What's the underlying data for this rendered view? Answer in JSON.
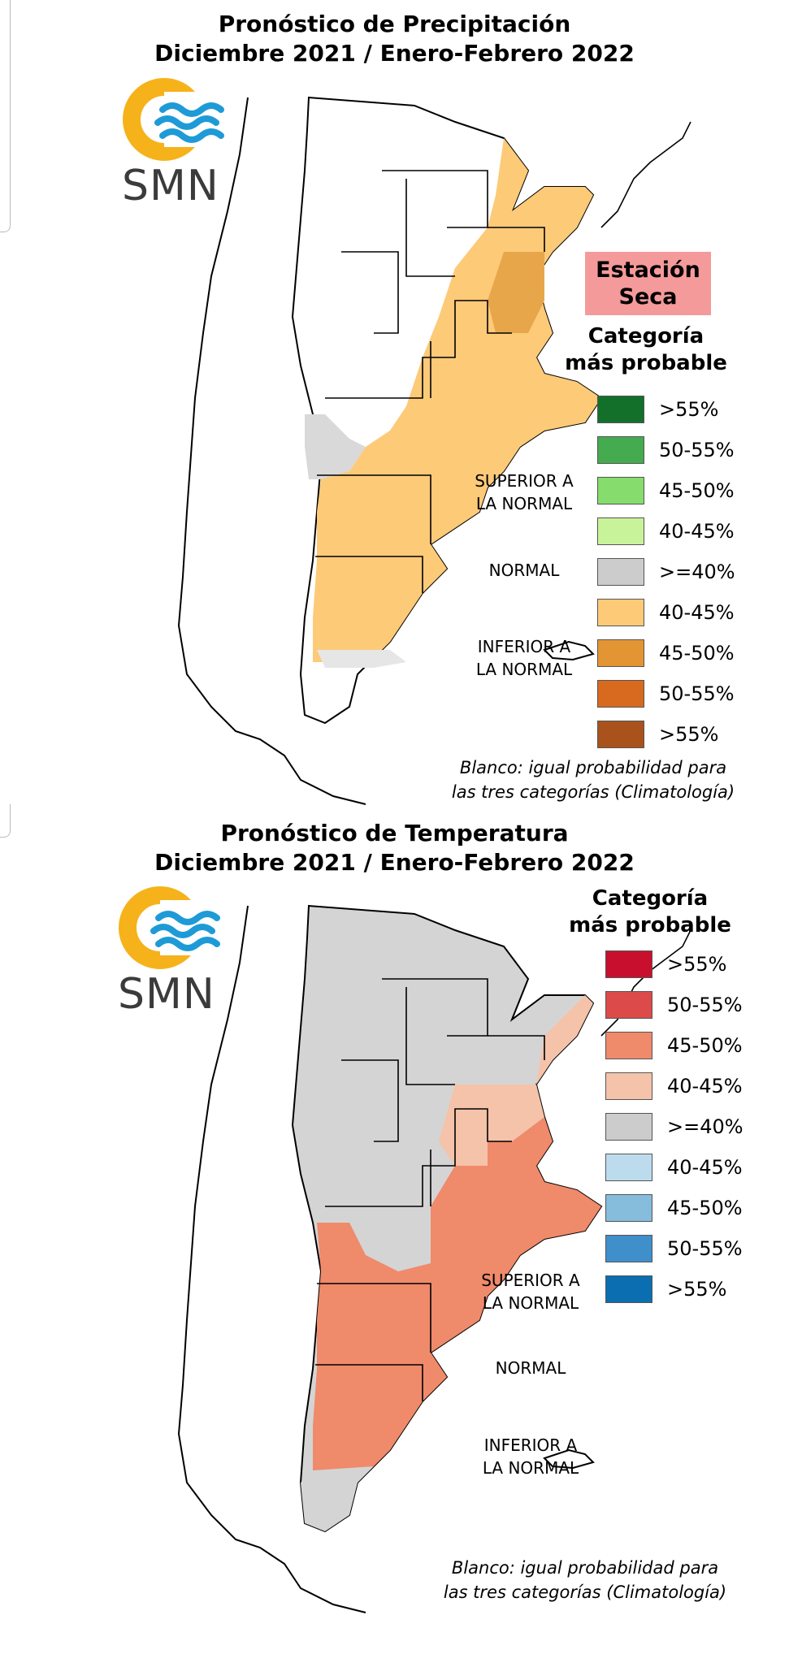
{
  "precipitation": {
    "title_line1": "Pronóstico de Precipitación",
    "title_line2": "Diciembre 2021 / Enero-Febrero 2022",
    "logo_text": "SMN",
    "season_badge": "Estación Seca",
    "legend_title": "Categoría más probable",
    "legend_items": [
      {
        "color": "#13702b",
        "label": ">55%"
      },
      {
        "color": "#44ab4e",
        "label": "50-55%"
      },
      {
        "color": "#86dc6c",
        "label": "45-50%"
      },
      {
        "color": "#c8f39a",
        "label": "40-45%"
      },
      {
        "color": "#cccccc",
        "label": ">=40%"
      },
      {
        "color": "#fdca78",
        "label": "40-45%"
      },
      {
        "color": "#e39533",
        "label": "45-50%"
      },
      {
        "color": "#d86a1f",
        "label": "50-55%"
      },
      {
        "color": "#a9521b",
        "label": ">55%"
      }
    ],
    "group_upper": "SUPERIOR A LA NORMAL",
    "group_normal": "NORMAL",
    "group_lower": "INFERIOR A LA NORMAL",
    "footnote_line1": "Blanco: igual probabilidad para",
    "footnote_line2": "las tres categorías (Climatología)"
  },
  "temperature": {
    "title_line1": "Pronóstico de Temperatura",
    "title_line2": "Diciembre 2021 / Enero-Febrero 2022",
    "logo_text": "SMN",
    "legend_title": "Categoría más probable",
    "legend_items": [
      {
        "color": "#c8102e",
        "label": ">55%"
      },
      {
        "color": "#dd4a4a",
        "label": "50-55%"
      },
      {
        "color": "#ef8a6b",
        "label": "45-50%"
      },
      {
        "color": "#f5c3a9",
        "label": "40-45%"
      },
      {
        "color": "#cccccc",
        "label": ">=40%"
      },
      {
        "color": "#bcdcee",
        "label": "40-45%"
      },
      {
        "color": "#86bcdc",
        "label": "45-50%"
      },
      {
        "color": "#3f8fcb",
        "label": "50-55%"
      },
      {
        "color": "#0a6eb0",
        "label": ">55%"
      }
    ],
    "group_upper": "SUPERIOR A LA NORMAL",
    "group_normal": "NORMAL",
    "group_lower": "INFERIOR A LA NORMAL",
    "footnote_line1": "Blanco: igual probabilidad para",
    "footnote_line2": "las tres categorías (Climatología)"
  },
  "colors": {
    "logo_ring": "#f6b21b",
    "logo_waves": "#1e9bd7",
    "precip_fill_main": "#fdca78",
    "precip_fill_strong": "#e8a64a",
    "precip_normal": "#d9d9d9",
    "temp_fill_main": "#ef8a6b",
    "temp_fill_light": "#f5c3a9",
    "temp_normal": "#d4d4d4"
  }
}
